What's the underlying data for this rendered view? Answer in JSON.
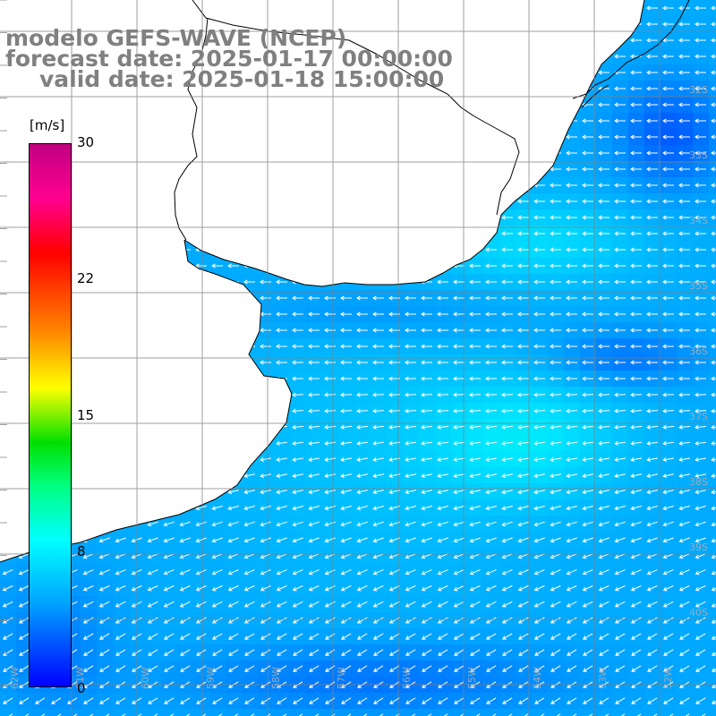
{
  "title": {
    "line1": "modelo GEFS-WAVE (NCEP)",
    "line2": "forecast date: 2025-01-17 00:00:00",
    "line3": "valid date: 2025-01-18 15:00:00"
  },
  "colorbar": {
    "unit": "[m/s]",
    "ticks": [
      "30",
      "22",
      "15",
      "8",
      "0"
    ],
    "range": [
      0,
      30
    ]
  },
  "map": {
    "lat_labels": [
      "32S",
      "33S",
      "34S",
      "35S",
      "36S",
      "37S",
      "38S",
      "39S",
      "40S"
    ],
    "lon_labels": [
      "62W",
      "61W",
      "60W",
      "59W",
      "58W",
      "57W",
      "56W",
      "55W",
      "54W",
      "53W",
      "52W"
    ],
    "field": "wind speed",
    "land_color": "#ffffff",
    "arrow_color": "#ffffff",
    "coastline_color": "#000000",
    "grid_color": "#808080"
  }
}
